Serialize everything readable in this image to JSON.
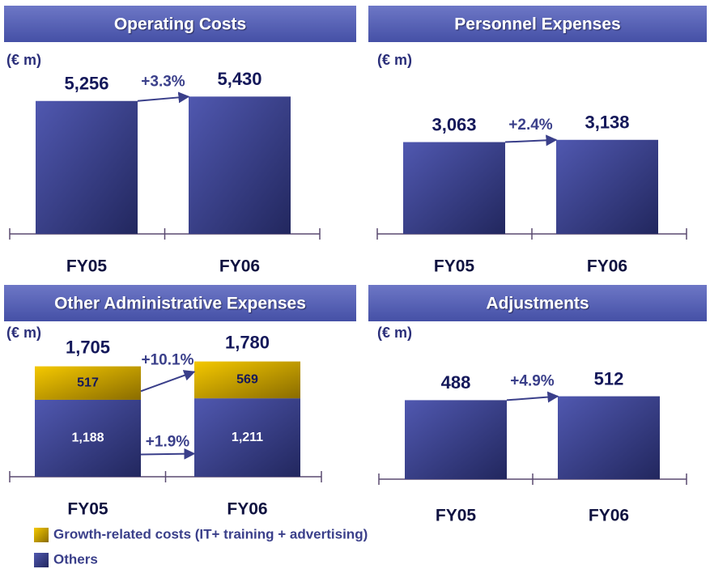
{
  "chart_data": [
    {
      "type": "bar",
      "title": "Operating Costs",
      "unit": "(€ m)",
      "categories": [
        "FY05",
        "FY06"
      ],
      "values": [
        5256,
        5430
      ],
      "value_labels": [
        "5,256",
        "5,430"
      ],
      "growth": "+3.3%",
      "color": "#3c4596",
      "ylim": [
        0,
        6400
      ]
    },
    {
      "type": "bar",
      "title": "Personnel Expenses",
      "unit": "(€ m)",
      "categories": [
        "FY05",
        "FY06"
      ],
      "values": [
        3063,
        3138
      ],
      "value_labels": [
        "3,063",
        "3,138"
      ],
      "growth": "+2.4%",
      "color": "#3c4596",
      "ylim": [
        0,
        5400
      ]
    },
    {
      "type": "stacked_bar",
      "title": "Other Administrative Expenses",
      "unit": "(€ m)",
      "categories": [
        "FY05",
        "FY06"
      ],
      "totals": [
        1705,
        1780
      ],
      "total_labels": [
        "1,705",
        "1,780"
      ],
      "series": [
        {
          "name": "Others",
          "color": "#3c4596",
          "values": [
            1188,
            1211
          ],
          "value_labels": [
            "1,188",
            "1,211"
          ],
          "growth": "+1.9%"
        },
        {
          "name": "Growth-related costs (IT+ training + advertising)",
          "color": "#d8aa00",
          "values": [
            517,
            569
          ],
          "growth": "+10.1%"
        }
      ],
      "ylim": [
        0,
        2500
      ]
    },
    {
      "type": "bar",
      "title": "Adjustments",
      "unit": "(€ m)",
      "categories": [
        "FY05",
        "FY06"
      ],
      "values": [
        488,
        512
      ],
      "growth": "+4.9%",
      "color": "#3c4596",
      "ylim": [
        0,
        1000
      ]
    }
  ]
}
